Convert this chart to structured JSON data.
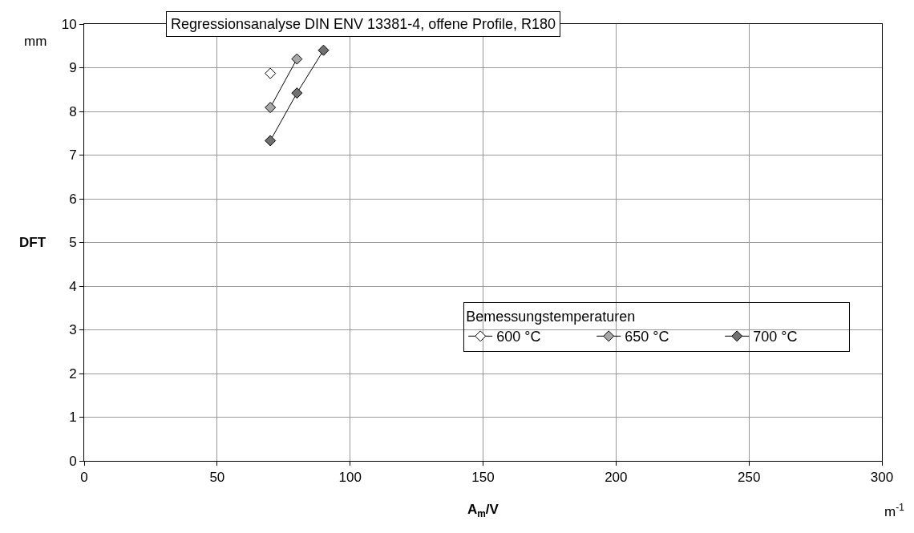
{
  "chart_data": {
    "type": "line",
    "title": "Regressionsanalyse DIN ENV 13381-4, offene Profile, R180",
    "xlabel": "A$_{m}$/V",
    "ylabel": "DFT",
    "annotations": [
      "mm",
      "m$^{-1}$"
    ],
    "legend_title": "Bemessungstemperaturen",
    "legend": "bottom right",
    "marker": "diamond",
    "grid": true,
    "series": [
      {
        "name": "600 °C",
        "color": "#ffffff",
        "x": [
          70
        ],
        "values": [
          8.87
        ]
      },
      {
        "name": "650 °C",
        "color": "#a8a8a8",
        "x": [
          70,
          80
        ],
        "values": [
          8.09,
          9.2
        ]
      },
      {
        "name": "700 °C",
        "color": "#707070",
        "x": [
          70,
          80,
          90
        ],
        "values": [
          7.33,
          8.42,
          9.4
        ]
      }
    ],
    "xlim": [
      0,
      300
    ],
    "xticks": [
      0,
      50,
      100,
      150,
      200,
      250,
      300
    ],
    "ylim": [
      0,
      10
    ],
    "yticks": [
      0,
      1,
      2,
      3,
      4,
      5,
      6,
      7,
      8,
      9,
      10
    ]
  }
}
